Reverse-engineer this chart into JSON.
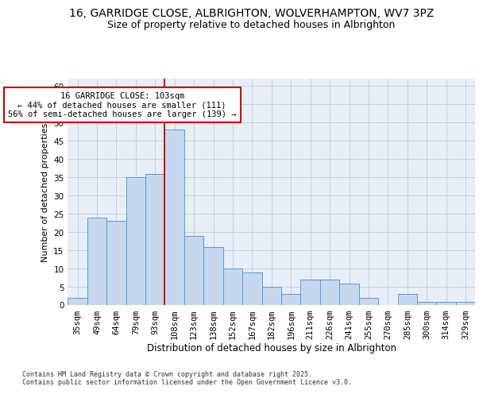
{
  "title_line1": "16, GARRIDGE CLOSE, ALBRIGHTON, WOLVERHAMPTON, WV7 3PZ",
  "title_line2": "Size of property relative to detached houses in Albrighton",
  "xlabel": "Distribution of detached houses by size in Albrighton",
  "ylabel": "Number of detached properties",
  "categories": [
    "35sqm",
    "49sqm",
    "64sqm",
    "79sqm",
    "93sqm",
    "108sqm",
    "123sqm",
    "138sqm",
    "152sqm",
    "167sqm",
    "182sqm",
    "196sqm",
    "211sqm",
    "226sqm",
    "241sqm",
    "255sqm",
    "270sqm",
    "285sqm",
    "300sqm",
    "314sqm",
    "329sqm"
  ],
  "values": [
    2,
    24,
    23,
    35,
    36,
    48,
    19,
    16,
    10,
    9,
    5,
    3,
    7,
    7,
    6,
    2,
    0,
    3,
    1,
    1,
    1
  ],
  "bar_color": "#c5d8f0",
  "bar_edge_color": "#5b9bd5",
  "grid_color": "#c0ccd8",
  "background_color": "#e8eef8",
  "vline_color": "#cc0000",
  "vline_x": 4.5,
  "annotation_text": "16 GARRIDGE CLOSE: 103sqm\n← 44% of detached houses are smaller (111)\n56% of semi-detached houses are larger (139) →",
  "annotation_box_color": "#ffffff",
  "annotation_box_edge": "#cc0000",
  "ylim": [
    0,
    62
  ],
  "yticks": [
    0,
    5,
    10,
    15,
    20,
    25,
    30,
    35,
    40,
    45,
    50,
    55,
    60
  ],
  "footer_text": "Contains HM Land Registry data © Crown copyright and database right 2025.\nContains public sector information licensed under the Open Government Licence v3.0.",
  "title_fontsize": 10,
  "subtitle_fontsize": 9,
  "xlabel_fontsize": 8.5,
  "ylabel_fontsize": 8,
  "tick_fontsize": 7.5,
  "annotation_fontsize": 7.5,
  "footer_fontsize": 6
}
